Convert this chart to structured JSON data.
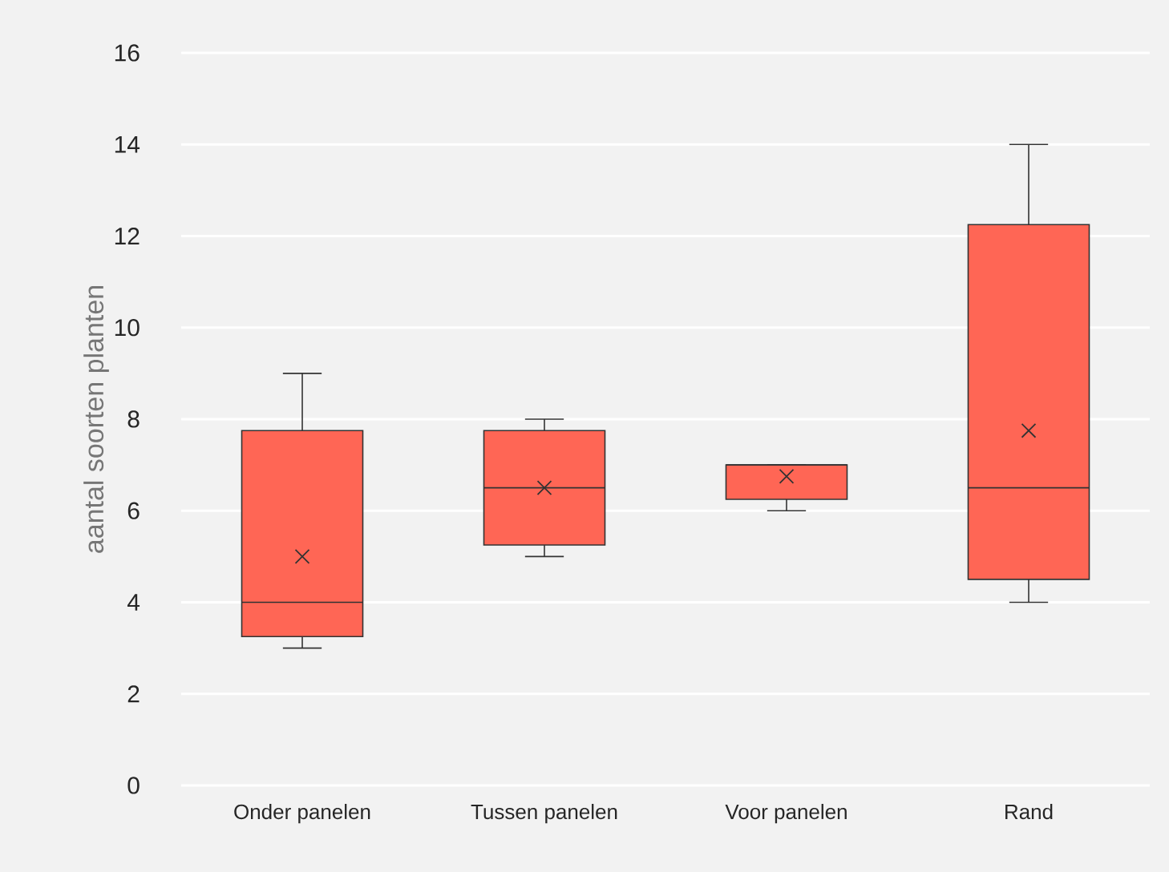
{
  "chart_data": {
    "type": "box",
    "ylabel": "aantal soorten planten",
    "categories": [
      "Onder panelen",
      "Tussen panelen",
      "Voor panelen",
      "Rand"
    ],
    "color": "#ff6655",
    "boxes": [
      {
        "low": 3,
        "q1": 3.25,
        "median": 4,
        "q3": 7.75,
        "high": 9,
        "mean": 5
      },
      {
        "low": 5,
        "q1": 5.25,
        "median": 6.5,
        "q3": 7.75,
        "high": 8,
        "mean": 6.5
      },
      {
        "low": 6,
        "q1": 6.25,
        "median": 7,
        "q3": 7,
        "high": 7,
        "mean": 6.75
      },
      {
        "low": 4,
        "q1": 4.5,
        "median": 6.5,
        "q3": 12.25,
        "high": 14,
        "mean": 7.75
      }
    ],
    "ylim": [
      0,
      16
    ],
    "yticks": [
      0,
      2,
      4,
      6,
      8,
      10,
      12,
      14,
      16
    ],
    "grid": "y",
    "marker": "cross"
  }
}
